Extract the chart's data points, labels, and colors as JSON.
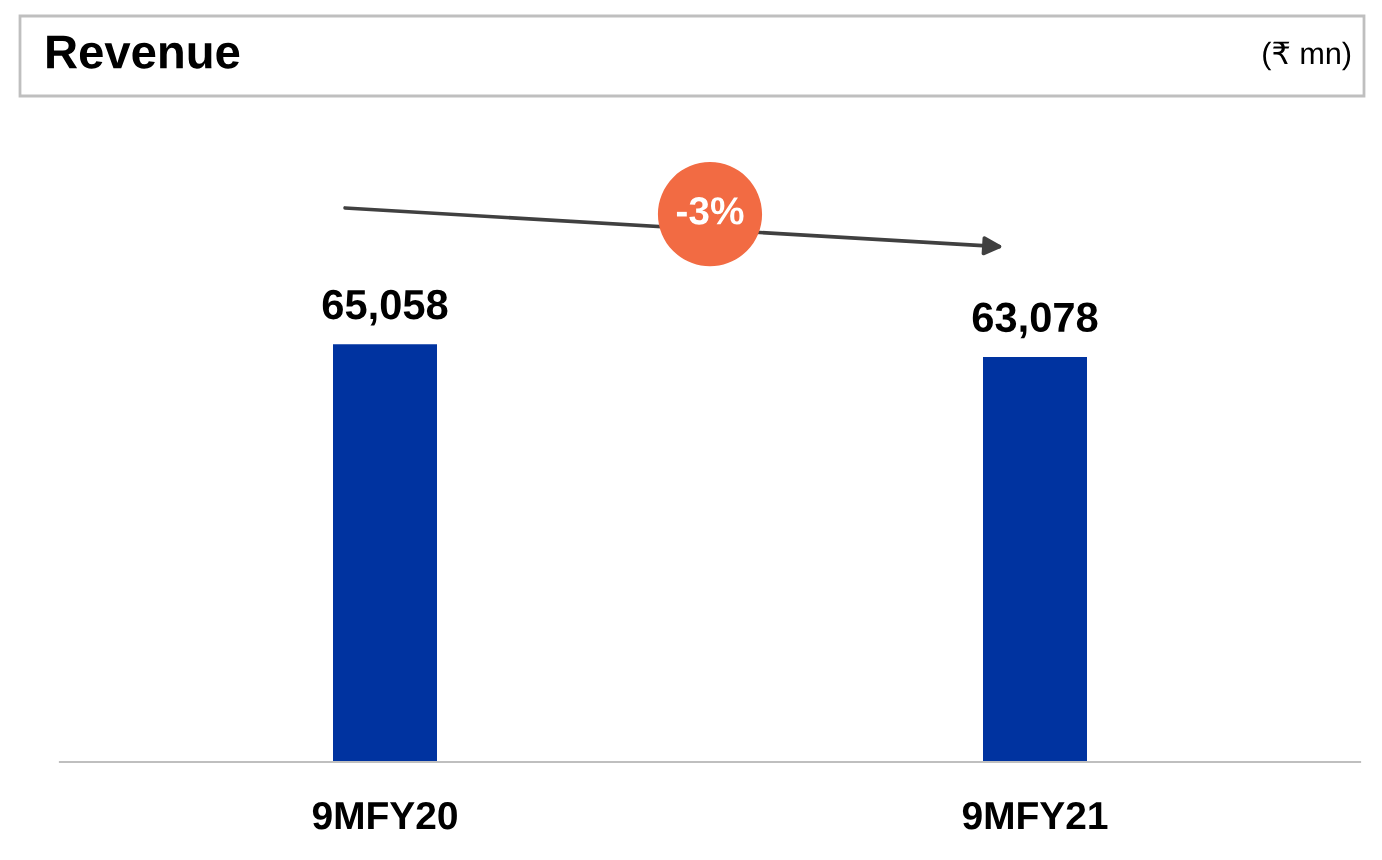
{
  "chart_data": {
    "type": "bar",
    "title": "Revenue",
    "subtitle": "(₹ mn)",
    "categories": [
      "9MFY20",
      "9MFY21"
    ],
    "values": [
      65058,
      63078
    ],
    "color": "#0033a0",
    "value_labels": [
      "65,058",
      "63,078"
    ],
    "annotations": [
      "-3%"
    ],
    "grid": false
  }
}
